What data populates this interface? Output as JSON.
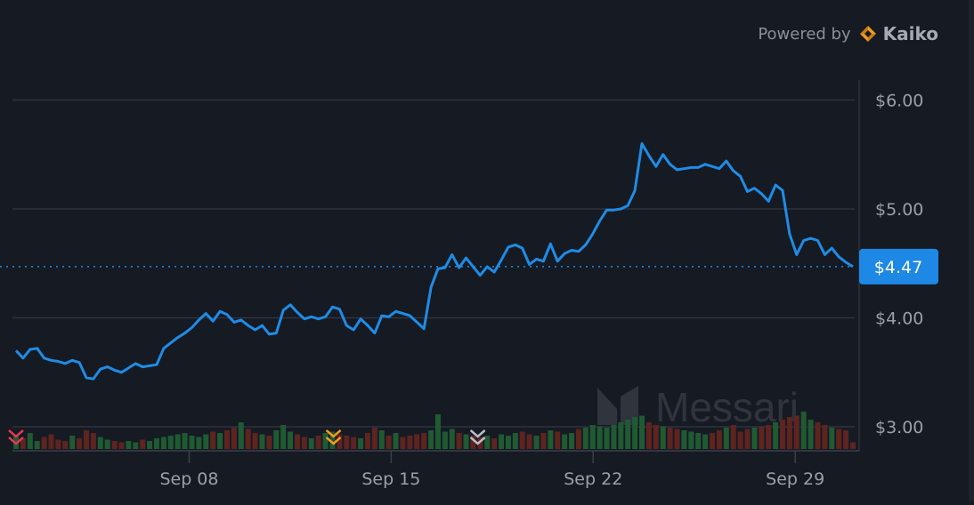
{
  "header": {
    "powered_label": "Powered by",
    "brand": "Kaiko"
  },
  "watermark": "Messari",
  "price_tag": "$4.47",
  "colors": {
    "line": "#1f8ce6",
    "grid": "#2e333e",
    "axis_text": "#9aa0aa",
    "tag_bg": "#1e88e5",
    "vol_up": "#1f5a33",
    "vol_down": "#5e2420"
  },
  "markers": [
    {
      "icon": "double-chevron-down-icon",
      "color": "#e0394f",
      "date": "2024-09-02"
    },
    {
      "icon": "double-chevron-down-icon",
      "color": "#f29a1e",
      "date": "2024-09-13"
    },
    {
      "icon": "double-chevron-down-icon",
      "color": "#b8bcc6",
      "date": "2024-09-18"
    }
  ],
  "chart_data": {
    "type": "line",
    "x_ticks": [
      "Sep 08",
      "Sep 15",
      "Sep 22",
      "Sep 29"
    ],
    "y_ticks": [
      "$3.00",
      "$4.00",
      "$5.00",
      "$6.00"
    ],
    "ylim": [
      2.8,
      6.2
    ],
    "x_range": [
      "Sep 02",
      "Oct 01"
    ],
    "last_price": 4.47,
    "series": [
      {
        "values": [
          3.7,
          3.63,
          3.71,
          3.72,
          3.63,
          3.61,
          3.6,
          3.58,
          3.61,
          3.59,
          3.45,
          3.44,
          3.53,
          3.55,
          3.52,
          3.5,
          3.54,
          3.58,
          3.55,
          3.56,
          3.57,
          3.72,
          3.77,
          3.82,
          3.86,
          3.91,
          3.98,
          4.04,
          3.97,
          4.06,
          4.03,
          3.96,
          3.98,
          3.93,
          3.89,
          3.93,
          3.85,
          3.86,
          4.07,
          4.12,
          4.05,
          3.99,
          4.01,
          3.99,
          4.01,
          4.1,
          4.08,
          3.93,
          3.89,
          3.99,
          3.93,
          3.86,
          4.02,
          4.01,
          4.06,
          4.04,
          4.02,
          3.96,
          3.9,
          4.28,
          4.45,
          4.46,
          4.58,
          4.46,
          4.55,
          4.47,
          4.39,
          4.47,
          4.42,
          4.53,
          4.65,
          4.67,
          4.64,
          4.49,
          4.54,
          4.52,
          4.68,
          4.52,
          4.59,
          4.62,
          4.61,
          4.67,
          4.77,
          4.89,
          4.99,
          4.99,
          5.0,
          5.03,
          5.17,
          5.6,
          5.49,
          5.39,
          5.5,
          5.41,
          5.36,
          5.37,
          5.38,
          5.38,
          5.41,
          5.39,
          5.37,
          5.44,
          5.35,
          5.3,
          5.16,
          5.19,
          5.14,
          5.07,
          5.22,
          5.17,
          4.77,
          4.58,
          4.71,
          4.73,
          4.71,
          4.58,
          4.64,
          4.56,
          4.51,
          4.47
        ]
      },
      {
        "values": [
          10,
          8,
          12,
          6,
          9,
          11,
          7,
          6,
          10,
          8,
          14,
          12,
          9,
          7,
          6,
          5,
          6,
          5,
          7,
          6,
          8,
          9,
          10,
          11,
          12,
          10,
          9,
          11,
          13,
          12,
          14,
          16,
          20,
          15,
          12,
          11,
          10,
          14,
          18,
          13,
          11,
          9,
          8,
          10,
          12,
          13,
          11,
          10,
          9,
          8,
          12,
          16,
          14,
          10,
          12,
          9,
          10,
          11,
          12,
          14,
          26,
          13,
          15,
          12,
          11,
          10,
          9,
          10,
          8,
          11,
          10,
          12,
          13,
          11,
          10,
          12,
          14,
          13,
          11,
          12,
          15,
          16,
          18,
          17,
          16,
          18,
          20,
          22,
          24,
          25,
          20,
          18,
          17,
          16,
          15,
          14,
          13,
          12,
          11,
          12,
          14,
          16,
          18,
          13,
          15,
          16,
          17,
          18,
          20,
          22,
          24,
          25,
          28,
          22,
          20,
          18,
          16,
          15,
          14,
          5
        ]
      }
    ]
  }
}
